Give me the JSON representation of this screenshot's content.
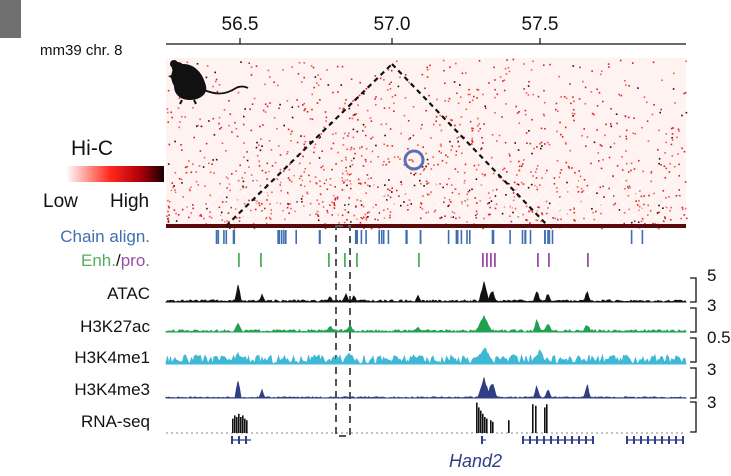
{
  "figure": {
    "panel_tag": "",
    "genome_label": "mm39 chr. 8",
    "axis_ticks": [
      "56.5",
      "57.0",
      "57.5"
    ],
    "legend": {
      "title": "Hi-C",
      "low": "Low",
      "high": "High"
    },
    "tracks": {
      "chain": "Chain align.",
      "enh": "Enh.",
      "slash": "/",
      "pro": "pro.",
      "atac": "ATAC",
      "h3k27ac": "H3K27ac",
      "h3k4me1": "H3K4me1",
      "h3k4me3": "H3K4me3",
      "rnaseq": "RNA-seq"
    },
    "scales": [
      "5",
      "3",
      "0.5",
      "3",
      "3"
    ],
    "gene": "Hand2",
    "colors": {
      "hic": "#d2121a",
      "chain": "#3f6fae",
      "enhancer": "#4fae5c",
      "promoter": "#9b4fa8",
      "atac": "#111111",
      "h3k27ac": "#21a050",
      "h3k4me1": "#3fb8d6",
      "h3k4me3": "#2e3f86",
      "rnaseq": "#111111",
      "gene": "#2e3f86"
    }
  }
}
